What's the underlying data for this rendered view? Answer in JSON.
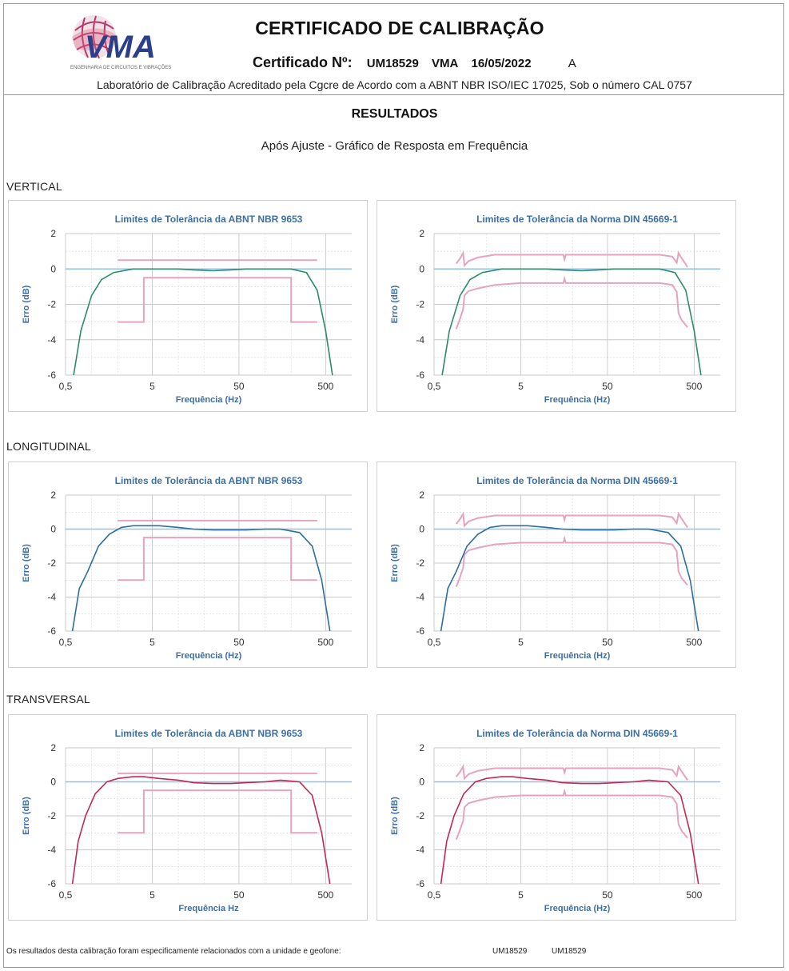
{
  "header": {
    "title": "CERTIFICADO DE CALIBRAÇÃO",
    "certificate_label": "Certificado Nº:",
    "certificate_number": "UM18529",
    "issuer": "VMA",
    "date": "16/05/2022",
    "revision": "A",
    "accreditation": "Laboratório de Calibração Acreditado pela Cgcre de Acordo com a ABNT NBR ISO/IEC 17025, Sob o número CAL 0757",
    "logo_text": "VMA",
    "logo_tagline": "ENGENHARIA DE CIRCUITOS E VIBRAÇÕES"
  },
  "results": {
    "title": "RESULTADOS",
    "subtitle": "Após Ajuste - Gráfico de Resposta em Frequência"
  },
  "sections": [
    "VERTICAL",
    "LONGITUDINAL",
    "TRANSVERSAL"
  ],
  "colors": {
    "vertical": "#2e8a6c",
    "longitudinal": "#2c6e9e",
    "transversal": "#c02856",
    "limit": "#e6a3c0",
    "zero_line": "#8fc3e3",
    "grid": "#c9c9c9",
    "chart_title": "#3b6fa5"
  },
  "footer": {
    "text": "Os resultados desta calibração foram especificamente relacionados com a unidade e geofone:",
    "unit_1": "UM18529",
    "unit_2": "UM18529"
  },
  "chart_data": [
    {
      "type": "line",
      "section": "VERTICAL",
      "norm": "ABNT",
      "title": "Limites de Tolerância da ABNT NBR 9653",
      "xlabel": "Frequência (Hz)",
      "ylabel": "Erro (dB)",
      "x_scale": "log",
      "xlim": [
        0.5,
        1000
      ],
      "ylim": [
        -6,
        2
      ],
      "xticks": [
        "0,5",
        "5",
        "50",
        "500"
      ],
      "yticks": [
        "2",
        "0",
        "-2",
        "-4",
        "-6"
      ],
      "series": [
        {
          "color": "vertical",
          "x": [
            0.62,
            0.75,
            1,
            1.3,
            1.8,
            3,
            5,
            10,
            15,
            25,
            40,
            60,
            100,
            200,
            300,
            400,
            500,
            600
          ],
          "y": [
            -6,
            -3.5,
            -1.5,
            -0.6,
            -0.2,
            0,
            0,
            0,
            -0.05,
            -0.1,
            -0.05,
            0,
            0,
            0,
            -0.2,
            -1.2,
            -3.5,
            -6
          ]
        }
      ],
      "limits": [
        {
          "x": [
            2,
            400
          ],
          "y": [
            0.5,
            0.5
          ]
        },
        {
          "x": [
            2,
            4,
            4,
            200,
            200,
            400
          ],
          "y": [
            -3,
            -3,
            -0.5,
            -0.5,
            -3,
            -3
          ]
        }
      ]
    },
    {
      "type": "line",
      "section": "VERTICAL",
      "norm": "DIN",
      "title": "Limites de Tolerância da Norma DIN 45669-1",
      "xlabel": "Frequência (Hz)",
      "ylabel": "Erro (dB)",
      "x_scale": "log",
      "xlim": [
        0.5,
        1000
      ],
      "ylim": [
        -6,
        2
      ],
      "xticks": [
        "0,5",
        "5",
        "50",
        "500"
      ],
      "yticks": [
        "2",
        "0",
        "-2",
        "-4",
        "-6"
      ],
      "series": [
        {
          "color": "vertical",
          "x": [
            0.62,
            0.75,
            1,
            1.3,
            1.8,
            3,
            5,
            10,
            15,
            25,
            40,
            60,
            100,
            200,
            300,
            400,
            500,
            600
          ],
          "y": [
            -6,
            -3.5,
            -1.5,
            -0.6,
            -0.2,
            0,
            0,
            0,
            -0.05,
            -0.1,
            -0.05,
            0,
            0,
            0,
            -0.2,
            -1.2,
            -3.5,
            -6
          ]
        }
      ],
      "limits": [
        {
          "x": [
            0.9,
            1.0,
            1.08,
            1.12,
            1.25,
            1.6,
            2.5,
            5,
            10,
            15.5,
            16,
            16.5,
            30,
            100,
            200,
            280,
            315,
            330,
            360,
            420
          ],
          "y": [
            0.3,
            0.6,
            0.9,
            0.2,
            0.45,
            0.65,
            0.8,
            0.8,
            0.8,
            0.8,
            0.55,
            0.8,
            0.8,
            0.8,
            0.8,
            0.7,
            0.35,
            0.9,
            0.6,
            0.1
          ]
        },
        {
          "x": [
            0.9,
            1.0,
            1.08,
            1.12,
            1.25,
            1.6,
            2.5,
            5,
            10,
            15.5,
            16,
            16.5,
            30,
            100,
            200,
            280,
            315,
            330,
            360,
            420
          ],
          "y": [
            -3.4,
            -2.8,
            -2.3,
            -1.5,
            -1.25,
            -1.1,
            -0.9,
            -0.8,
            -0.8,
            -0.8,
            -0.55,
            -0.8,
            -0.8,
            -0.8,
            -0.8,
            -0.9,
            -1.3,
            -2.5,
            -2.9,
            -3.3
          ]
        }
      ]
    },
    {
      "type": "line",
      "section": "LONGITUDINAL",
      "norm": "ABNT",
      "title": "Limites de Tolerância da ABNT NBR 9653",
      "xlabel": "Frequência (Hz)",
      "ylabel": "Erro (dB)",
      "x_scale": "log",
      "xlim": [
        0.5,
        1000
      ],
      "ylim": [
        -6,
        2
      ],
      "xticks": [
        "0,5",
        "5",
        "50",
        "500"
      ],
      "yticks": [
        "2",
        "0",
        "-2",
        "-4",
        "-6"
      ],
      "series": [
        {
          "color": "longitudinal",
          "x": [
            0.6,
            0.72,
            0.9,
            1.2,
            1.6,
            2.2,
            3,
            4,
            6,
            10,
            15,
            25,
            40,
            60,
            100,
            150,
            250,
            350,
            450,
            560
          ],
          "y": [
            -6,
            -3.5,
            -2.5,
            -1.0,
            -0.3,
            0.1,
            0.2,
            0.2,
            0.2,
            0.1,
            0,
            -0.05,
            -0.05,
            -0.05,
            0,
            0,
            -0.2,
            -1.0,
            -3.0,
            -6
          ]
        }
      ],
      "limits": [
        {
          "x": [
            2,
            400
          ],
          "y": [
            0.5,
            0.5
          ]
        },
        {
          "x": [
            2,
            4,
            4,
            200,
            200,
            400
          ],
          "y": [
            -3,
            -3,
            -0.5,
            -0.5,
            -3,
            -3
          ]
        }
      ]
    },
    {
      "type": "line",
      "section": "LONGITUDINAL",
      "norm": "DIN",
      "title": "Limites de Tolerância da Norma DIN 45669-1",
      "xlabel": "Frequência (Hz)",
      "ylabel": "Erro (dB)",
      "x_scale": "log",
      "xlim": [
        0.5,
        1000
      ],
      "ylim": [
        -6,
        2
      ],
      "xticks": [
        "0,5",
        "5",
        "50",
        "500"
      ],
      "yticks": [
        "2",
        "0",
        "-2",
        "-4",
        "-6"
      ],
      "series": [
        {
          "color": "longitudinal",
          "x": [
            0.6,
            0.72,
            0.9,
            1.2,
            1.6,
            2.2,
            3,
            4,
            6,
            10,
            15,
            25,
            40,
            60,
            100,
            150,
            250,
            350,
            450,
            560
          ],
          "y": [
            -6,
            -3.5,
            -2.5,
            -1.0,
            -0.3,
            0.1,
            0.2,
            0.2,
            0.2,
            0.1,
            0,
            -0.05,
            -0.05,
            -0.05,
            0,
            0,
            -0.2,
            -1.0,
            -3.0,
            -6
          ]
        }
      ],
      "limits": [
        {
          "x": [
            0.9,
            1.0,
            1.08,
            1.12,
            1.25,
            1.6,
            2.5,
            5,
            10,
            15.5,
            16,
            16.5,
            30,
            100,
            200,
            280,
            315,
            330,
            360,
            420
          ],
          "y": [
            0.3,
            0.6,
            0.9,
            0.2,
            0.45,
            0.65,
            0.8,
            0.8,
            0.8,
            0.8,
            0.55,
            0.8,
            0.8,
            0.8,
            0.8,
            0.7,
            0.35,
            0.9,
            0.6,
            0.1
          ]
        },
        {
          "x": [
            0.9,
            1.0,
            1.08,
            1.12,
            1.25,
            1.6,
            2.5,
            5,
            10,
            15.5,
            16,
            16.5,
            30,
            100,
            200,
            280,
            315,
            330,
            360,
            420
          ],
          "y": [
            -3.4,
            -2.8,
            -2.3,
            -1.5,
            -1.25,
            -1.1,
            -0.9,
            -0.8,
            -0.8,
            -0.8,
            -0.55,
            -0.8,
            -0.8,
            -0.8,
            -0.8,
            -0.9,
            -1.3,
            -2.5,
            -2.9,
            -3.3
          ]
        }
      ]
    },
    {
      "type": "line",
      "section": "TRANSVERSAL",
      "norm": "ABNT",
      "title": "Limites de Tolerância da ABNT NBR 9653",
      "xlabel": "Frequência Hz",
      "ylabel": "Erro (dB)",
      "x_scale": "log",
      "xlim": [
        0.5,
        1000
      ],
      "ylim": [
        -6,
        2
      ],
      "xticks": [
        "0,5",
        "5",
        "50",
        "500"
      ],
      "yticks": [
        "2",
        "0",
        "-2",
        "-4",
        "-6"
      ],
      "series": [
        {
          "color": "transversal",
          "x": [
            0.6,
            0.7,
            0.85,
            1.1,
            1.5,
            2,
            3,
            4,
            6,
            10,
            15,
            25,
            40,
            60,
            100,
            150,
            250,
            350,
            450,
            560
          ],
          "y": [
            -6,
            -3.5,
            -2.0,
            -0.7,
            0,
            0.2,
            0.3,
            0.3,
            0.2,
            0.1,
            -0.05,
            -0.1,
            -0.1,
            -0.05,
            0,
            0.1,
            0,
            -0.8,
            -3.0,
            -6
          ]
        }
      ],
      "limits": [
        {
          "x": [
            2,
            400
          ],
          "y": [
            0.5,
            0.5
          ]
        },
        {
          "x": [
            2,
            4,
            4,
            200,
            200,
            400
          ],
          "y": [
            -3,
            -3,
            -0.5,
            -0.5,
            -3,
            -3
          ]
        }
      ]
    },
    {
      "type": "line",
      "section": "TRANSVERSAL",
      "norm": "DIN",
      "title": "Limites de Tolerância da Norma DIN 45669-1",
      "xlabel": "Frequência (Hz)",
      "ylabel": "Erro (dB)",
      "x_scale": "log",
      "xlim": [
        0.5,
        1000
      ],
      "ylim": [
        -6,
        2
      ],
      "xticks": [
        "0,5",
        "5",
        "50",
        "500"
      ],
      "yticks": [
        "2",
        "0",
        "-2",
        "-4",
        "-6"
      ],
      "series": [
        {
          "color": "transversal",
          "x": [
            0.6,
            0.7,
            0.85,
            1.1,
            1.5,
            2,
            3,
            4,
            6,
            10,
            15,
            25,
            40,
            60,
            100,
            150,
            250,
            350,
            450,
            560
          ],
          "y": [
            -6,
            -3.5,
            -2.0,
            -0.7,
            0,
            0.2,
            0.3,
            0.3,
            0.2,
            0.1,
            -0.05,
            -0.1,
            -0.1,
            -0.05,
            0,
            0.1,
            0,
            -0.8,
            -3.0,
            -6
          ]
        }
      ],
      "limits": [
        {
          "x": [
            0.9,
            1.0,
            1.08,
            1.12,
            1.25,
            1.6,
            2.5,
            5,
            10,
            15.5,
            16,
            16.5,
            30,
            100,
            200,
            280,
            315,
            330,
            360,
            420
          ],
          "y": [
            0.3,
            0.6,
            0.9,
            0.2,
            0.45,
            0.65,
            0.8,
            0.8,
            0.8,
            0.8,
            0.55,
            0.8,
            0.8,
            0.8,
            0.8,
            0.7,
            0.35,
            0.9,
            0.6,
            0.1
          ]
        },
        {
          "x": [
            0.9,
            1.0,
            1.08,
            1.12,
            1.25,
            1.6,
            2.5,
            5,
            10,
            15.5,
            16,
            16.5,
            30,
            100,
            200,
            280,
            315,
            330,
            360,
            420
          ],
          "y": [
            -3.4,
            -2.8,
            -2.3,
            -1.5,
            -1.25,
            -1.1,
            -0.9,
            -0.8,
            -0.8,
            -0.8,
            -0.55,
            -0.8,
            -0.8,
            -0.8,
            -0.8,
            -0.9,
            -1.3,
            -2.5,
            -2.9,
            -3.3
          ]
        }
      ]
    }
  ]
}
